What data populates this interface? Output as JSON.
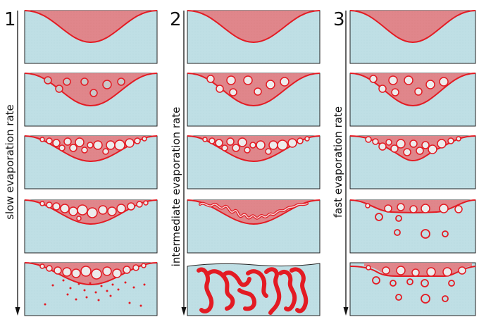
{
  "columns": [
    {
      "number": "1",
      "label": "slow evaporation rate"
    },
    {
      "number": "2",
      "label": "intermediate evaporation rate"
    },
    {
      "number": "3",
      "label": "fast evaporation rate"
    }
  ],
  "colors": {
    "water": "#bfdfe5",
    "film": "#e0868b",
    "line": "#e31b23",
    "bubble": "#c9c9c9",
    "frame": "#222222"
  }
}
